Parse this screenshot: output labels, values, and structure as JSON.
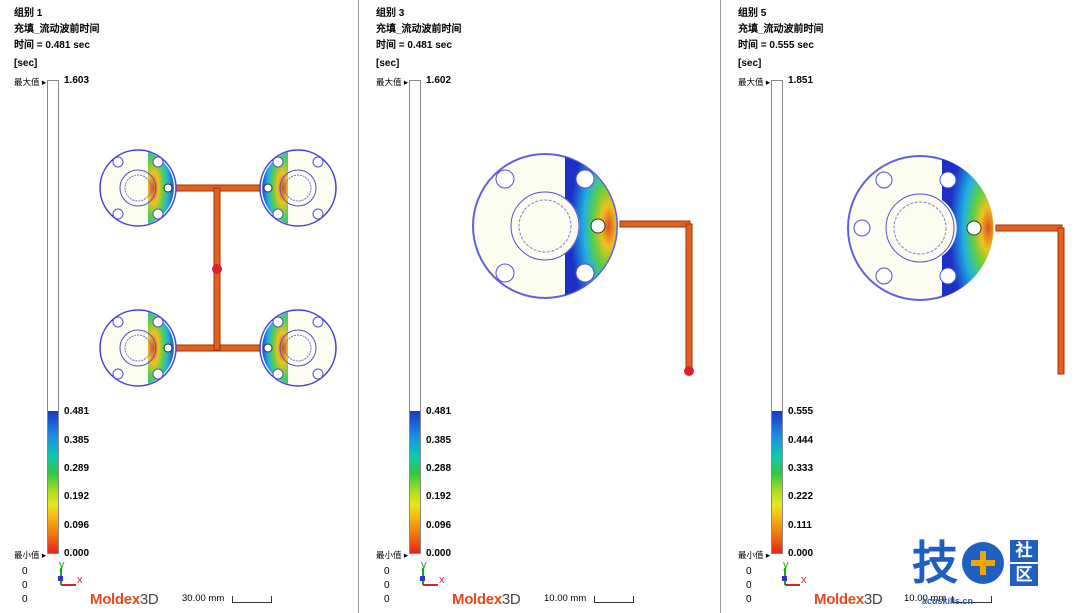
{
  "panels": [
    {
      "group": "组别 1",
      "result": "充填_流动波前时间",
      "time": "时间 = 0.481 sec",
      "unit": "[sec]",
      "max_label": "最大值",
      "max_value": "1.603",
      "min_label": "最小值",
      "min_value": "0.000",
      "ticks": [
        "0.481",
        "0.385",
        "0.289",
        "0.192",
        "0.096"
      ],
      "axis": [
        "0",
        "0",
        "0"
      ],
      "logo_a": "Moldex",
      "logo_b": "3D",
      "scale": "30.00 mm"
    },
    {
      "group": "组别 3",
      "result": "充填_流动波前时间",
      "time": "时间 = 0.481 sec",
      "unit": "[sec]",
      "max_label": "最大值",
      "max_value": "1.602",
      "min_label": "最小值",
      "min_value": "0.000",
      "ticks": [
        "0.481",
        "0.385",
        "0.288",
        "0.192",
        "0.096"
      ],
      "axis": [
        "0",
        "0",
        "0"
      ],
      "logo_a": "Moldex",
      "logo_b": "3D",
      "scale": "10.00 mm"
    },
    {
      "group": "组别 5",
      "result": "充填_流动波前时间",
      "time": "时间 = 0.555 sec",
      "unit": "[sec]",
      "max_label": "最大值",
      "max_value": "1.851",
      "min_label": "最小值",
      "min_value": "0.000",
      "ticks": [
        "0.555",
        "0.444",
        "0.333",
        "0.222",
        "0.111"
      ],
      "axis": [
        "0",
        "0",
        "0"
      ],
      "logo_a": "Moldex",
      "logo_b": "3D",
      "scale": "10.00 mm"
    }
  ],
  "axis_labels": {
    "y": "y",
    "x": "x"
  },
  "watermark": {
    "char": "技",
    "side_1": "社",
    "side_2": "区",
    "url": "acuskills.cn"
  }
}
